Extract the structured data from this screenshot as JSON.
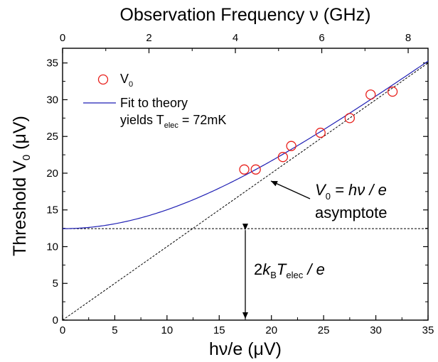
{
  "chart_data": {
    "type": "scatter",
    "xlabel": "hν/e (μV)",
    "ylabel_base": "Threshold V",
    "ylabel_sub": "0",
    "ylabel_unit": " (μV)",
    "top_xlabel": "Observation Frequency ν (GHz)",
    "xlim": [
      0,
      35
    ],
    "ylim": [
      0,
      37
    ],
    "top_xlim": [
      0,
      8.46
    ],
    "xticks": [
      0,
      5,
      10,
      15,
      20,
      25,
      30,
      35
    ],
    "xtick_labels": [
      "0",
      "5",
      "10",
      "15",
      "20",
      "25",
      "30",
      "35"
    ],
    "yticks": [
      0,
      5,
      10,
      15,
      20,
      25,
      30,
      35
    ],
    "ytick_labels": [
      "0",
      "5",
      "10",
      "15",
      "20",
      "25",
      "30",
      "35"
    ],
    "top_xticks": [
      0,
      2,
      4,
      6,
      8
    ],
    "top_xtick_labels": [
      "0",
      "2",
      "4",
      "6",
      "8"
    ],
    "series": [
      {
        "name": "V",
        "name_sub": "0",
        "kind": "marker",
        "color": "#e8201c",
        "x": [
          17.4,
          18.5,
          21.1,
          21.9,
          24.7,
          27.5,
          29.5,
          31.6
        ],
        "y": [
          20.5,
          20.5,
          22.2,
          23.7,
          25.5,
          27.5,
          30.7,
          31.1
        ]
      },
      {
        "name": "Fit to theory",
        "kind": "fit",
        "color": "#1f1fb4",
        "params": {
          "V_thermal": 12.45
        }
      },
      {
        "name": "asymptote",
        "kind": "dashed",
        "color": "#000000",
        "x": [
          0,
          35
        ],
        "y": [
          0,
          35
        ]
      },
      {
        "name": "thermal level",
        "kind": "dashed-horizontal",
        "color": "#000000",
        "y": 12.45
      }
    ],
    "legend": {
      "placement": "top-left",
      "fit_note_prefix": "yields T",
      "fit_note_sub": "elec",
      "fit_note_suffix": " = 72mK"
    },
    "annotations": {
      "asymptote_eq_v": "V",
      "asymptote_eq_sub": "0",
      "asymptote_eq_rest": " = hν / e",
      "asymptote_label": "asymptote",
      "thermal_eq_lead": "2",
      "thermal_eq_k": "k",
      "thermal_eq_b": "B",
      "thermal_eq_t": "T",
      "thermal_eq_sub": "elec",
      "thermal_eq_tail": " / e"
    }
  }
}
